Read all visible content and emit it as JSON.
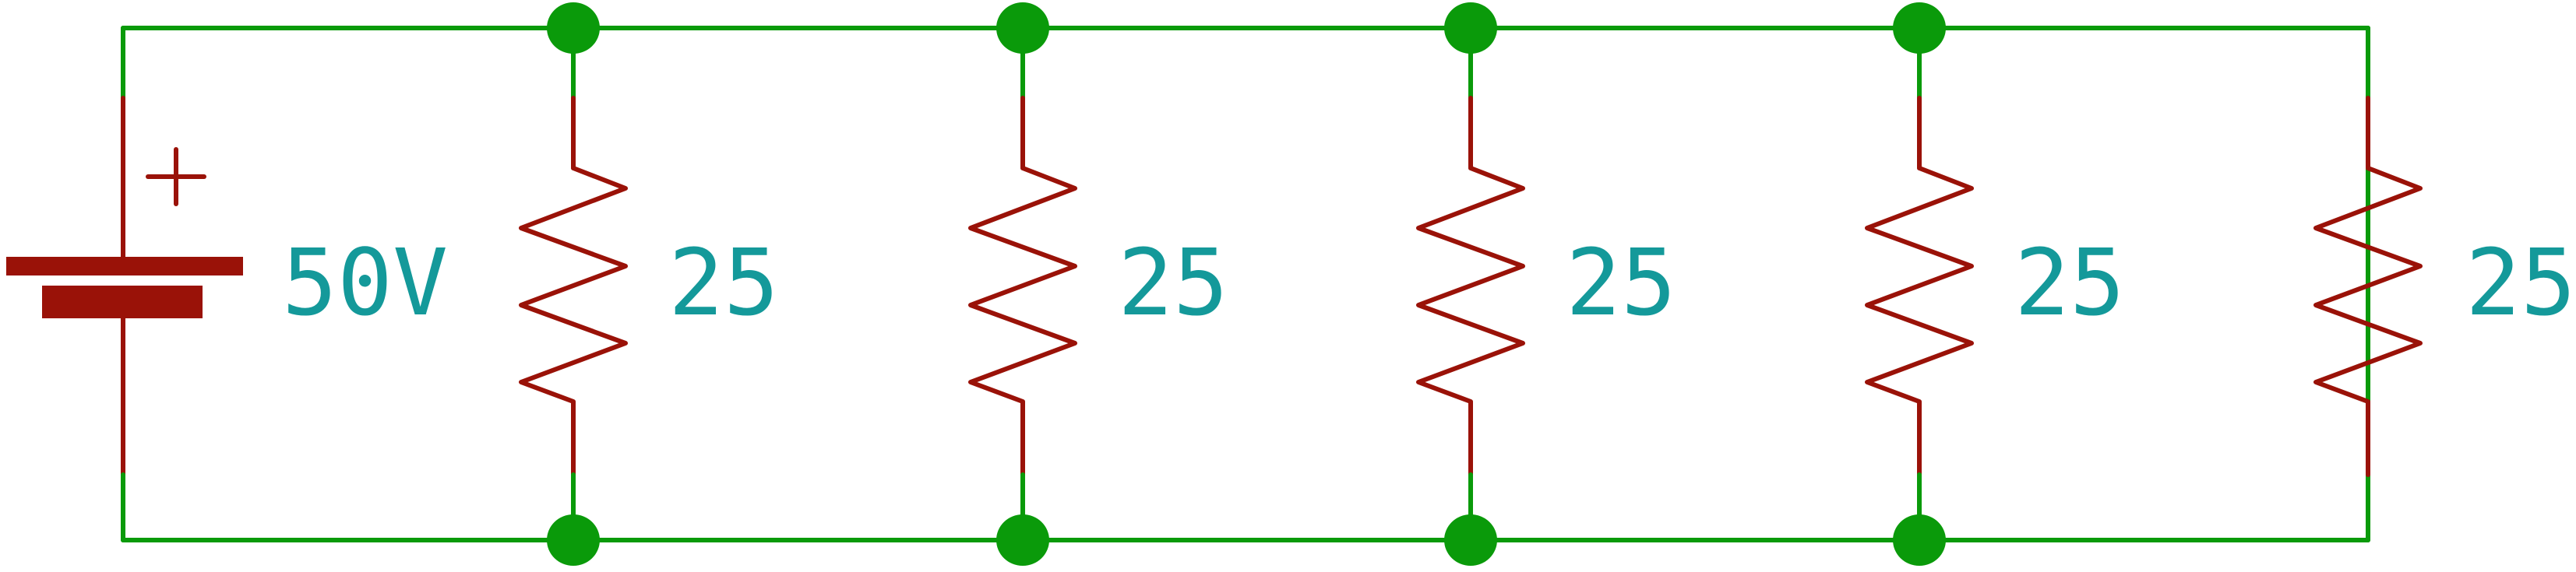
{
  "diagram": {
    "colors": {
      "wire": "#0a9a0a",
      "component": "#9a1208",
      "label": "#14999a",
      "junction": "#0a9a0a"
    },
    "source": {
      "label": "50V",
      "polarity_mark": "+"
    },
    "resistors": [
      {
        "label": "25"
      },
      {
        "label": "25"
      },
      {
        "label": "25"
      },
      {
        "label": "25"
      },
      {
        "label": "25"
      }
    ]
  }
}
